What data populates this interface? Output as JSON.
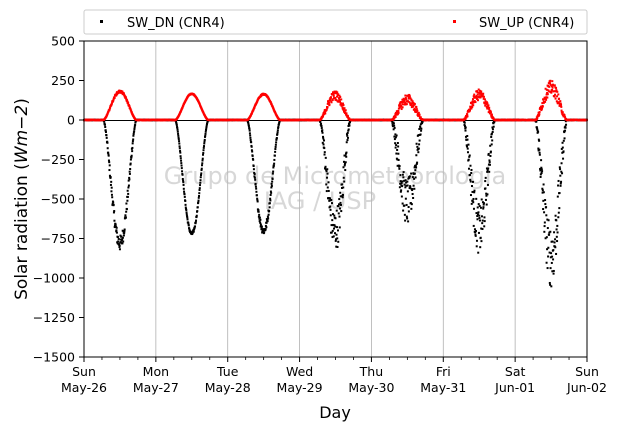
{
  "chart_data": {
    "type": "scatter",
    "title": "",
    "xlabel": "Day",
    "ylabel_main": "Solar radiation (",
    "ylabel_unit": "Wm",
    "ylabel_exp": "−2",
    "ylabel_close": ")",
    "ylim": [
      -1500,
      500
    ],
    "yticks": [
      500,
      250,
      0,
      -250,
      -500,
      -750,
      -1000,
      -1250,
      -1500
    ],
    "ytick_labels": [
      "500",
      "250",
      "0",
      "−250",
      "−500",
      "−750",
      "−1000",
      "−1250",
      "−1500"
    ],
    "xlim_days": [
      0,
      7
    ],
    "xticks": [
      {
        "day": 0,
        "dow": "Sun",
        "date": "May-26"
      },
      {
        "day": 1,
        "dow": "Mon",
        "date": "May-27"
      },
      {
        "day": 2,
        "dow": "Tue",
        "date": "May-28"
      },
      {
        "day": 3,
        "dow": "Wed",
        "date": "May-29"
      },
      {
        "day": 4,
        "dow": "Thu",
        "date": "May-30"
      },
      {
        "day": 5,
        "dow": "Fri",
        "date": "May-31"
      },
      {
        "day": 6,
        "dow": "Sat",
        "date": "Jun-01"
      },
      {
        "day": 7,
        "dow": "Sun",
        "date": "Jun-02"
      }
    ],
    "grid": "vertical",
    "zero_line": true,
    "legend_position": "top, above plot",
    "watermark_line1": "Grupo de Micrometeorologia",
    "watermark_line2": "IAG / USP",
    "series": [
      {
        "name": "SW_DN (CNR4)",
        "color": "#000000",
        "days": [
          {
            "day": 0,
            "sunrise": 0.27,
            "sunset": 0.73,
            "peak": -780,
            "noise": 50
          },
          {
            "day": 1,
            "sunrise": 0.27,
            "sunset": 0.73,
            "peak": -720,
            "noise": 10
          },
          {
            "day": 2,
            "sunrise": 0.27,
            "sunset": 0.73,
            "peak": -700,
            "noise": 25
          },
          {
            "day": 3,
            "sunrise": 0.28,
            "sunset": 0.71,
            "peak": -700,
            "noise": 140
          },
          {
            "day": 4,
            "sunrise": 0.28,
            "sunset": 0.72,
            "peak": -520,
            "noise": 150
          },
          {
            "day": 5,
            "sunrise": 0.28,
            "sunset": 0.72,
            "peak": -690,
            "noise": 160
          },
          {
            "day": 6,
            "sunrise": 0.28,
            "sunset": 0.72,
            "peak": -860,
            "noise": 200
          }
        ]
      },
      {
        "name": "SW_UP (CNR4)",
        "color": "#ff0000",
        "days": [
          {
            "day": 0,
            "sunrise": 0.27,
            "sunset": 0.73,
            "peak": 180,
            "noise": 8
          },
          {
            "day": 1,
            "sunrise": 0.27,
            "sunset": 0.73,
            "peak": 165,
            "noise": 3
          },
          {
            "day": 2,
            "sunrise": 0.27,
            "sunset": 0.73,
            "peak": 163,
            "noise": 4
          },
          {
            "day": 3,
            "sunrise": 0.28,
            "sunset": 0.71,
            "peak": 155,
            "noise": 30
          },
          {
            "day": 4,
            "sunrise": 0.28,
            "sunset": 0.72,
            "peak": 130,
            "noise": 35
          },
          {
            "day": 5,
            "sunrise": 0.28,
            "sunset": 0.72,
            "peak": 160,
            "noise": 35
          },
          {
            "day": 6,
            "sunrise": 0.28,
            "sunset": 0.72,
            "peak": 205,
            "noise": 45
          }
        ]
      }
    ]
  }
}
